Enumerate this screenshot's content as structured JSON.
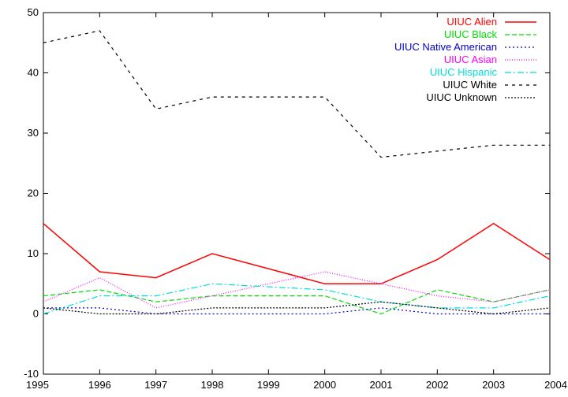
{
  "chart_data": {
    "type": "line",
    "title": "",
    "xlabel": "",
    "ylabel": "",
    "x": [
      1995,
      1996,
      1997,
      1998,
      1999,
      2000,
      2001,
      2002,
      2003,
      2004
    ],
    "xlim": [
      1995,
      2004
    ],
    "ylim": [
      -10,
      50
    ],
    "x_ticks": [
      "1995",
      "1996",
      "1997",
      "1998",
      "1999",
      "2000",
      "2001",
      "2002",
      "2003",
      "2004"
    ],
    "y_ticks": [
      "-10",
      "0",
      "10",
      "20",
      "30",
      "40",
      "50"
    ],
    "grid": false,
    "legend_position": "top-right",
    "series": [
      {
        "name": "UIUC Alien",
        "color": "#ff0000",
        "dash": "solid",
        "x": [
          1995,
          1996,
          1997,
          1998,
          2000,
          2001,
          2002,
          2003,
          2004
        ],
        "values": [
          15,
          7,
          6,
          10,
          5,
          5,
          9,
          15,
          9
        ]
      },
      {
        "name": "UIUC Black",
        "color": "#00dd00",
        "dash": "dash",
        "x": [
          1995,
          1996,
          1997,
          1998,
          2000,
          2001,
          2002,
          2003,
          2004
        ],
        "values": [
          3,
          4,
          2,
          3,
          3,
          0,
          4,
          2,
          4
        ]
      },
      {
        "name": "UIUC Native American",
        "color": "#0000cc",
        "dash": "dot",
        "x": [
          1995,
          1996,
          1997,
          1998,
          2000,
          2001,
          2002,
          2003,
          2004
        ],
        "values": [
          1,
          1,
          0,
          0,
          0,
          1,
          0,
          0,
          0
        ]
      },
      {
        "name": "UIUC Asian",
        "color": "#ff00ff",
        "dash": "finedot",
        "x": [
          1995,
          1996,
          1997,
          1998,
          2000,
          2001,
          2002,
          2003,
          2004
        ],
        "values": [
          2,
          6,
          1,
          3,
          7,
          5,
          3,
          2,
          4
        ]
      },
      {
        "name": "UIUC Hispanic",
        "color": "#00dddd",
        "dash": "dashdot",
        "x": [
          1995,
          1996,
          1997,
          1998,
          2000,
          2001,
          2002,
          2003,
          2004
        ],
        "values": [
          0,
          3,
          3,
          5,
          4,
          2,
          1,
          1,
          3
        ]
      },
      {
        "name": "UIUC White",
        "color": "#000000",
        "dash": "sparse",
        "x": [
          1995,
          1996,
          1997,
          1998,
          2000,
          2001,
          2002,
          2003,
          2004
        ],
        "values": [
          45,
          47,
          34,
          36,
          36,
          26,
          27,
          28,
          28
        ]
      },
      {
        "name": "UIUC Unknown",
        "color": "#000000",
        "dash": "densedot",
        "x": [
          1995,
          1996,
          1997,
          1998,
          2000,
          2001,
          2002,
          2003,
          2004
        ],
        "values": [
          1,
          0,
          0,
          1,
          1,
          2,
          1,
          0,
          1
        ]
      }
    ]
  }
}
